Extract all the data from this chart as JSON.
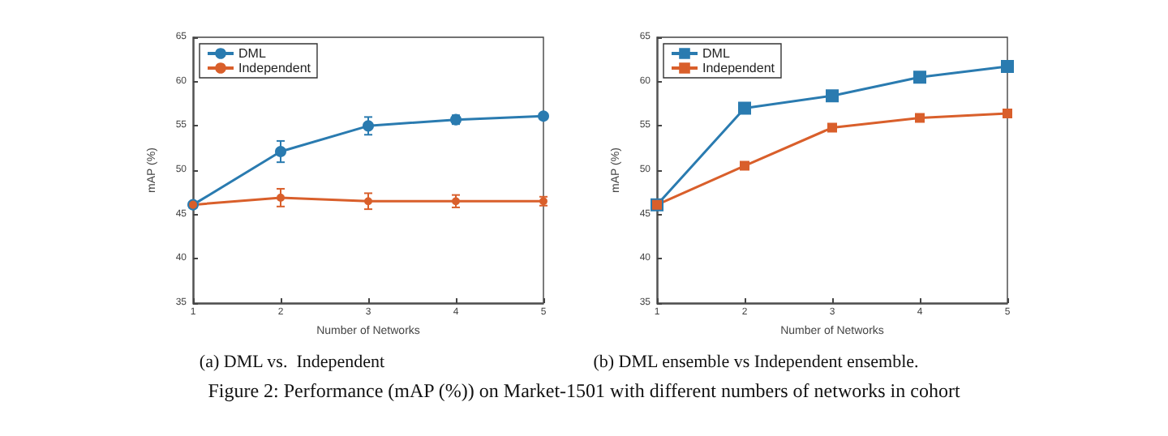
{
  "chart_data": [
    {
      "type": "line",
      "title": "(a) DML vs.  Independent",
      "xlabel": "Number of Networks",
      "ylabel": "mAP (%)",
      "x": [
        1,
        2,
        3,
        4,
        5
      ],
      "xlim": [
        1,
        5
      ],
      "xticks": [
        1,
        2,
        3,
        4,
        5
      ],
      "ylim": [
        35,
        65
      ],
      "yticks": [
        35,
        40,
        45,
        50,
        55,
        60,
        65
      ],
      "grid": false,
      "legend": "top left",
      "marker": "circle",
      "line_style": "solid",
      "series": [
        {
          "name": "DML",
          "color": "#2a7bb0",
          "values": [
            46.1,
            52.1,
            55.0,
            55.7,
            56.1
          ],
          "errors": [
            null,
            1.2,
            1.0,
            0.5,
            0.2
          ]
        },
        {
          "name": "Independent",
          "color": "#d95f2b",
          "values": [
            46.1,
            46.9,
            46.5,
            46.5,
            46.5
          ],
          "errors": [
            null,
            1.0,
            0.9,
            0.7,
            0.5
          ]
        }
      ],
      "annotations": [
        "Figure 2: Performance (mAP (%)) on Market-1501 with different numbers of networks in cohort"
      ]
    },
    {
      "type": "line",
      "title": "(b) DML ensemble vs Independent ensemble.",
      "xlabel": "Number of Networks",
      "ylabel": "mAP (%)",
      "x": [
        1,
        2,
        3,
        4,
        5
      ],
      "xlim": [
        1,
        5
      ],
      "xticks": [
        1,
        2,
        3,
        4,
        5
      ],
      "ylim": [
        35,
        65
      ],
      "yticks": [
        35,
        40,
        45,
        50,
        55,
        60,
        65
      ],
      "grid": false,
      "legend": "top left",
      "marker": "square",
      "line_style": "solid",
      "series": [
        {
          "name": "DML",
          "color": "#2a7bb0",
          "values": [
            46.1,
            57.0,
            58.4,
            60.5,
            61.7
          ]
        },
        {
          "name": "Independent",
          "color": "#d95f2b",
          "values": [
            46.1,
            50.5,
            54.8,
            55.9,
            56.4
          ]
        }
      ]
    }
  ]
}
